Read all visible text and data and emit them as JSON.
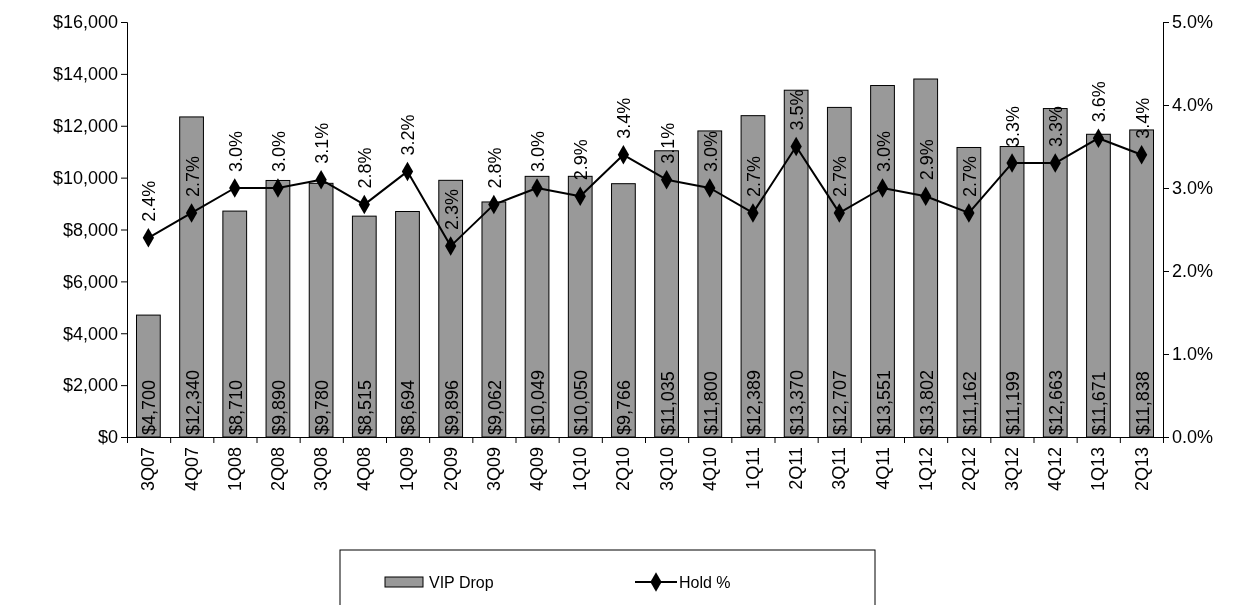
{
  "chart_data": {
    "type": "bar",
    "categories": [
      "3Q07",
      "4Q07",
      "1Q08",
      "2Q08",
      "3Q08",
      "4Q08",
      "1Q09",
      "2Q09",
      "3Q09",
      "4Q09",
      "1Q10",
      "2Q10",
      "3Q10",
      "4Q10",
      "1Q11",
      "2Q11",
      "3Q11",
      "4Q11",
      "1Q12",
      "2Q12",
      "3Q12",
      "4Q12",
      "1Q13",
      "2Q13"
    ],
    "series": [
      {
        "name": "VIP Drop",
        "color": "#999999",
        "values": [
          4700,
          12340,
          8710,
          9890,
          9780,
          8515,
          8694,
          9896,
          9062,
          10049,
          10050,
          9766,
          11035,
          11800,
          12389,
          13370,
          12707,
          13551,
          13802,
          11162,
          11199,
          12663,
          11671,
          11838
        ],
        "value_labels": [
          "$4,700",
          "$12,340",
          "$8,710",
          "$9,890",
          "$9,780",
          "$8,515",
          "$8,694",
          "$9,896",
          "$9,062",
          "$10,049",
          "$10,050",
          "$9,766",
          "$11,035",
          "$11,800",
          "$12,389",
          "$13,370",
          "$12,707",
          "$13,551",
          "$13,802",
          "$11,162",
          "$11,199",
          "$12,663",
          "$11,671",
          "$11,838"
        ]
      },
      {
        "name": "Hold %",
        "type": "line",
        "axis": "y2",
        "color": "#000000",
        "marker": "diamond",
        "values": [
          2.4,
          2.7,
          3.0,
          3.0,
          3.1,
          2.8,
          3.2,
          2.3,
          2.8,
          3.0,
          2.9,
          3.4,
          3.1,
          3.0,
          2.7,
          3.5,
          2.7,
          3.0,
          2.9,
          2.7,
          3.3,
          3.3,
          3.6,
          3.4
        ],
        "value_labels": [
          "2.4%",
          "2.7%",
          "3.0%",
          "3.0%",
          "3.1%",
          "2.8%",
          "3.2%",
          "2.3%",
          "2.8%",
          "3.0%",
          "2.9%",
          "3.4%",
          "3.1%",
          "3.0%",
          "2.7%",
          "3.5%",
          "2.7%",
          "3.0%",
          "2.9%",
          "2.7%",
          "3.3%",
          "3.3%",
          "3.6%",
          "3.4%"
        ]
      }
    ],
    "ylim": [
      0,
      16000
    ],
    "yticks": [
      {
        "value": 0,
        "label": "$0"
      },
      {
        "value": 2000,
        "label": "$2,000"
      },
      {
        "value": 4000,
        "label": "$4,000"
      },
      {
        "value": 6000,
        "label": "$6,000"
      },
      {
        "value": 8000,
        "label": "$8,000"
      },
      {
        "value": 10000,
        "label": "$10,000"
      },
      {
        "value": 12000,
        "label": "$12,000"
      },
      {
        "value": 14000,
        "label": "$14,000"
      },
      {
        "value": 16000,
        "label": "$16,000"
      }
    ],
    "y2lim": [
      0,
      5
    ],
    "y2ticks": [
      {
        "value": 0,
        "label": "0.0%"
      },
      {
        "value": 1,
        "label": "1.0%"
      },
      {
        "value": 2,
        "label": "2.0%"
      },
      {
        "value": 3,
        "label": "3.0%"
      },
      {
        "value": 4,
        "label": "4.0%"
      },
      {
        "value": 5,
        "label": "5.0%"
      }
    ],
    "legend": "bottom"
  }
}
